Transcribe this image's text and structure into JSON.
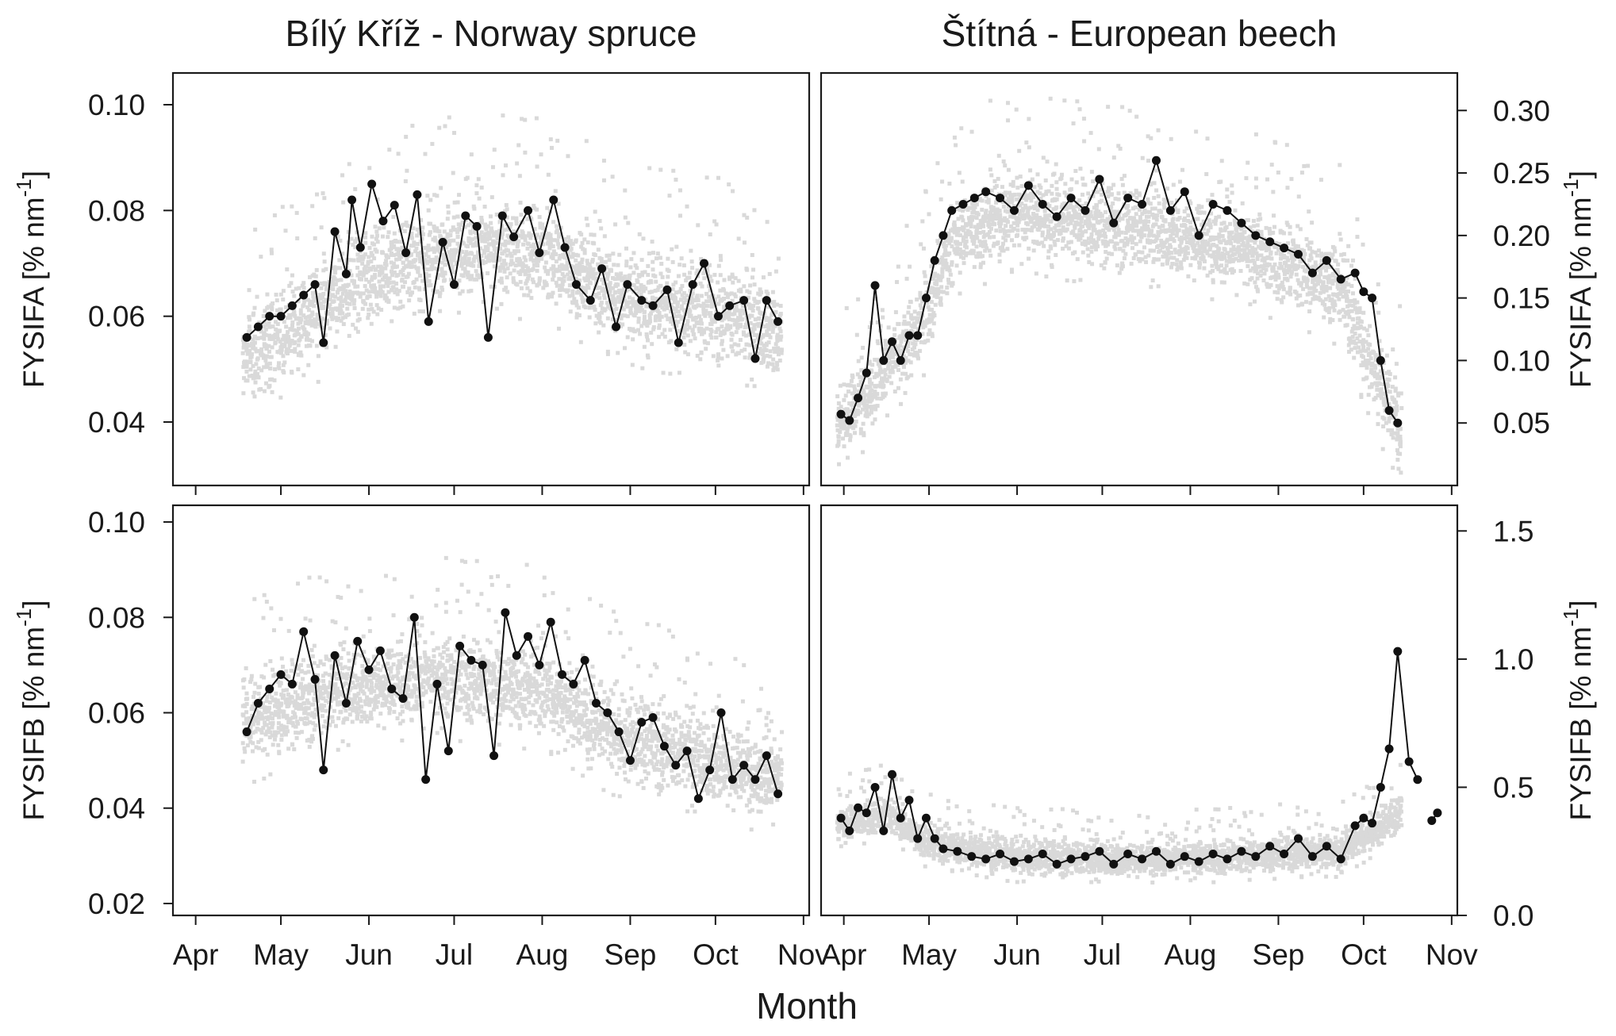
{
  "chart_data": [
    {
      "type": "scatter",
      "panel": "top-left",
      "title": "Bílý Kříž - Norway spruce",
      "ylabel_main": "FYSIFA [% nm",
      "ylabel_sup": "-1",
      "ylabel_close": "]",
      "ylabel_side": "left",
      "xlabel": "",
      "x_ticks": [
        "Apr",
        "May",
        "Jun",
        "Jul",
        "Aug",
        "Sep",
        "Oct",
        "Nov"
      ],
      "x_tick_values": [
        0,
        30,
        61,
        91,
        122,
        153,
        183,
        214
      ],
      "ylim": [
        0.028,
        0.106
      ],
      "y_ticks": [
        0.04,
        0.06,
        0.08,
        0.1
      ],
      "y_tick_labels": [
        "0.04",
        "0.06",
        "0.08",
        "0.10"
      ],
      "x_range_days": [
        -8,
        216
      ],
      "background_scatter": {
        "description_color": "#d9d9d9",
        "x_start": 17,
        "x_end": 206,
        "profile": [
          [
            17,
            0.052
          ],
          [
            40,
            0.06
          ],
          [
            61,
            0.068
          ],
          [
            90,
            0.073
          ],
          [
            122,
            0.072
          ],
          [
            150,
            0.064
          ],
          [
            183,
            0.061
          ],
          [
            206,
            0.057
          ]
        ],
        "spread": 0.008
      },
      "series": [
        {
          "name": "daily",
          "x": [
            18,
            22,
            26,
            30,
            34,
            38,
            42,
            45,
            49,
            53,
            55,
            58,
            62,
            66,
            70,
            74,
            78,
            82,
            87,
            91,
            95,
            99,
            103,
            108,
            112,
            117,
            121,
            126,
            130,
            134,
            139,
            143,
            148,
            152,
            157,
            161,
            166,
            170,
            175,
            179,
            184,
            188,
            193,
            197,
            201,
            205
          ],
          "y": [
            0.056,
            0.058,
            0.06,
            0.06,
            0.062,
            0.064,
            0.066,
            0.055,
            0.076,
            0.068,
            0.082,
            0.073,
            0.085,
            0.078,
            0.081,
            0.072,
            0.083,
            0.059,
            0.074,
            0.066,
            0.079,
            0.077,
            0.056,
            0.079,
            0.075,
            0.08,
            0.072,
            0.082,
            0.073,
            0.066,
            0.063,
            0.069,
            0.058,
            0.066,
            0.063,
            0.062,
            0.065,
            0.055,
            0.066,
            0.07,
            0.06,
            0.062,
            0.063,
            0.052,
            0.063,
            0.059
          ]
        }
      ]
    },
    {
      "type": "scatter",
      "panel": "top-right",
      "title": "Štítná - European beech",
      "ylabel_main": "FYSIFA [% nm",
      "ylabel_sup": "-1",
      "ylabel_close": "]",
      "ylabel_side": "right",
      "xlabel": "",
      "x_ticks": [
        "Apr",
        "May",
        "Jun",
        "Jul",
        "Aug",
        "Sep",
        "Oct",
        "Nov"
      ],
      "x_tick_values": [
        0,
        30,
        61,
        91,
        122,
        153,
        183,
        214
      ],
      "ylim": [
        0.0,
        0.33
      ],
      "y_ticks": [
        0.05,
        0.1,
        0.15,
        0.2,
        0.25,
        0.3
      ],
      "y_tick_labels": [
        "0.05",
        "0.10",
        "0.15",
        "0.20",
        "0.25",
        "0.30"
      ],
      "x_range_days": [
        -8,
        216
      ],
      "background_scatter": {
        "x_start": -2,
        "x_end": 196,
        "profile": [
          [
            -2,
            0.05
          ],
          [
            10,
            0.08
          ],
          [
            25,
            0.12
          ],
          [
            40,
            0.2
          ],
          [
            61,
            0.22
          ],
          [
            91,
            0.21
          ],
          [
            122,
            0.2
          ],
          [
            153,
            0.18
          ],
          [
            175,
            0.16
          ],
          [
            185,
            0.1
          ],
          [
            196,
            0.05
          ]
        ],
        "spread": 0.03
      },
      "series": [
        {
          "name": "daily",
          "x": [
            -1,
            2,
            5,
            8,
            11,
            14,
            17,
            20,
            23,
            26,
            29,
            32,
            35,
            38,
            42,
            46,
            50,
            55,
            60,
            65,
            70,
            75,
            80,
            85,
            90,
            95,
            100,
            105,
            110,
            115,
            120,
            125,
            130,
            135,
            140,
            145,
            150,
            155,
            160,
            165,
            170,
            175,
            180,
            183,
            186,
            189,
            192,
            195
          ],
          "y": [
            0.057,
            0.052,
            0.07,
            0.09,
            0.16,
            0.1,
            0.115,
            0.1,
            0.12,
            0.12,
            0.15,
            0.18,
            0.2,
            0.22,
            0.225,
            0.23,
            0.235,
            0.23,
            0.22,
            0.24,
            0.225,
            0.215,
            0.23,
            0.22,
            0.245,
            0.21,
            0.23,
            0.225,
            0.26,
            0.22,
            0.235,
            0.2,
            0.225,
            0.22,
            0.21,
            0.2,
            0.195,
            0.19,
            0.185,
            0.17,
            0.18,
            0.165,
            0.17,
            0.155,
            0.15,
            0.1,
            0.06,
            0.05
          ]
        }
      ]
    },
    {
      "type": "scatter",
      "panel": "bottom-left",
      "title": "",
      "ylabel_main": "FYSIFB [% nm",
      "ylabel_sup": "-1",
      "ylabel_close": "]",
      "ylabel_side": "left",
      "xlabel": "",
      "x_ticks": [
        "Apr",
        "May",
        "Jun",
        "Jul",
        "Aug",
        "Sep",
        "Oct",
        "Nov"
      ],
      "x_tick_values": [
        0,
        30,
        61,
        91,
        122,
        153,
        183,
        214
      ],
      "ylim": [
        0.0175,
        0.1035
      ],
      "y_ticks": [
        0.02,
        0.04,
        0.06,
        0.08,
        0.1
      ],
      "y_tick_labels": [
        "0.02",
        "0.04",
        "0.06",
        "0.08",
        "0.10"
      ],
      "x_range_days": [
        -8,
        216
      ],
      "background_scatter": {
        "x_start": 17,
        "x_end": 206,
        "profile": [
          [
            17,
            0.058
          ],
          [
            40,
            0.063
          ],
          [
            61,
            0.066
          ],
          [
            90,
            0.067
          ],
          [
            122,
            0.065
          ],
          [
            150,
            0.055
          ],
          [
            183,
            0.05
          ],
          [
            206,
            0.046
          ]
        ],
        "spread": 0.008
      },
      "series": [
        {
          "name": "daily",
          "x": [
            18,
            22,
            26,
            30,
            34,
            38,
            42,
            45,
            49,
            53,
            57,
            61,
            65,
            69,
            73,
            77,
            81,
            85,
            89,
            93,
            97,
            101,
            105,
            109,
            113,
            117,
            121,
            125,
            129,
            133,
            137,
            141,
            145,
            149,
            153,
            157,
            161,
            165,
            169,
            173,
            177,
            181,
            185,
            189,
            193,
            197,
            201,
            205
          ],
          "y": [
            0.056,
            0.062,
            0.065,
            0.068,
            0.066,
            0.077,
            0.067,
            0.048,
            0.072,
            0.062,
            0.075,
            0.069,
            0.073,
            0.065,
            0.063,
            0.08,
            0.046,
            0.066,
            0.052,
            0.074,
            0.071,
            0.07,
            0.051,
            0.081,
            0.072,
            0.076,
            0.07,
            0.079,
            0.068,
            0.066,
            0.071,
            0.062,
            0.06,
            0.056,
            0.05,
            0.058,
            0.059,
            0.053,
            0.049,
            0.052,
            0.042,
            0.048,
            0.06,
            0.046,
            0.049,
            0.046,
            0.051,
            0.043
          ]
        }
      ]
    },
    {
      "type": "scatter",
      "panel": "bottom-right",
      "title": "",
      "ylabel_main": "FYSIFB [% nm",
      "ylabel_sup": "-1",
      "ylabel_close": "]",
      "ylabel_side": "right",
      "xlabel": "",
      "x_ticks": [
        "Apr",
        "May",
        "Jun",
        "Jul",
        "Aug",
        "Sep",
        "Oct",
        "Nov"
      ],
      "x_tick_values": [
        0,
        30,
        61,
        91,
        122,
        153,
        183,
        214
      ],
      "ylim": [
        0.0,
        1.6
      ],
      "y_ticks": [
        0.0,
        0.5,
        1.0,
        1.5
      ],
      "y_tick_labels": [
        "0.0",
        "0.5",
        "1.0",
        "1.5"
      ],
      "x_range_days": [
        -8,
        216
      ],
      "background_scatter": {
        "x_start": -2,
        "x_end": 196,
        "profile": [
          [
            -2,
            0.35
          ],
          [
            15,
            0.4
          ],
          [
            30,
            0.28
          ],
          [
            61,
            0.23
          ],
          [
            91,
            0.22
          ],
          [
            122,
            0.22
          ],
          [
            153,
            0.24
          ],
          [
            175,
            0.25
          ],
          [
            185,
            0.32
          ],
          [
            196,
            0.4
          ]
        ],
        "spread": 0.06
      },
      "series": [
        {
          "name": "daily",
          "x": [
            -1,
            2,
            5,
            8,
            11,
            14,
            17,
            20,
            23,
            26,
            29,
            32,
            35,
            40,
            45,
            50,
            55,
            60,
            65,
            70,
            75,
            80,
            85,
            90,
            95,
            100,
            105,
            110,
            115,
            120,
            125,
            130,
            135,
            140,
            145,
            150,
            155,
            160,
            165,
            170,
            175,
            180,
            183,
            186,
            189,
            192,
            195,
            199,
            202
          ],
          "y": [
            0.38,
            0.33,
            0.42,
            0.4,
            0.5,
            0.33,
            0.55,
            0.38,
            0.45,
            0.3,
            0.38,
            0.3,
            0.26,
            0.25,
            0.23,
            0.22,
            0.24,
            0.21,
            0.22,
            0.24,
            0.2,
            0.22,
            0.23,
            0.25,
            0.2,
            0.24,
            0.22,
            0.25,
            0.2,
            0.23,
            0.21,
            0.24,
            0.22,
            0.25,
            0.23,
            0.27,
            0.24,
            0.3,
            0.23,
            0.27,
            0.22,
            0.35,
            0.38,
            0.36,
            0.5,
            0.65,
            1.03,
            0.6,
            0.53
          ]
        },
        {
          "name": "late",
          "x": [
            207,
            209
          ],
          "y": [
            0.37,
            0.4
          ]
        }
      ]
    }
  ],
  "figure": {
    "xlabel": "Month",
    "colors": {
      "points": "#111111",
      "background": "#d9d9d9",
      "frame": "#1a1a1a"
    }
  }
}
